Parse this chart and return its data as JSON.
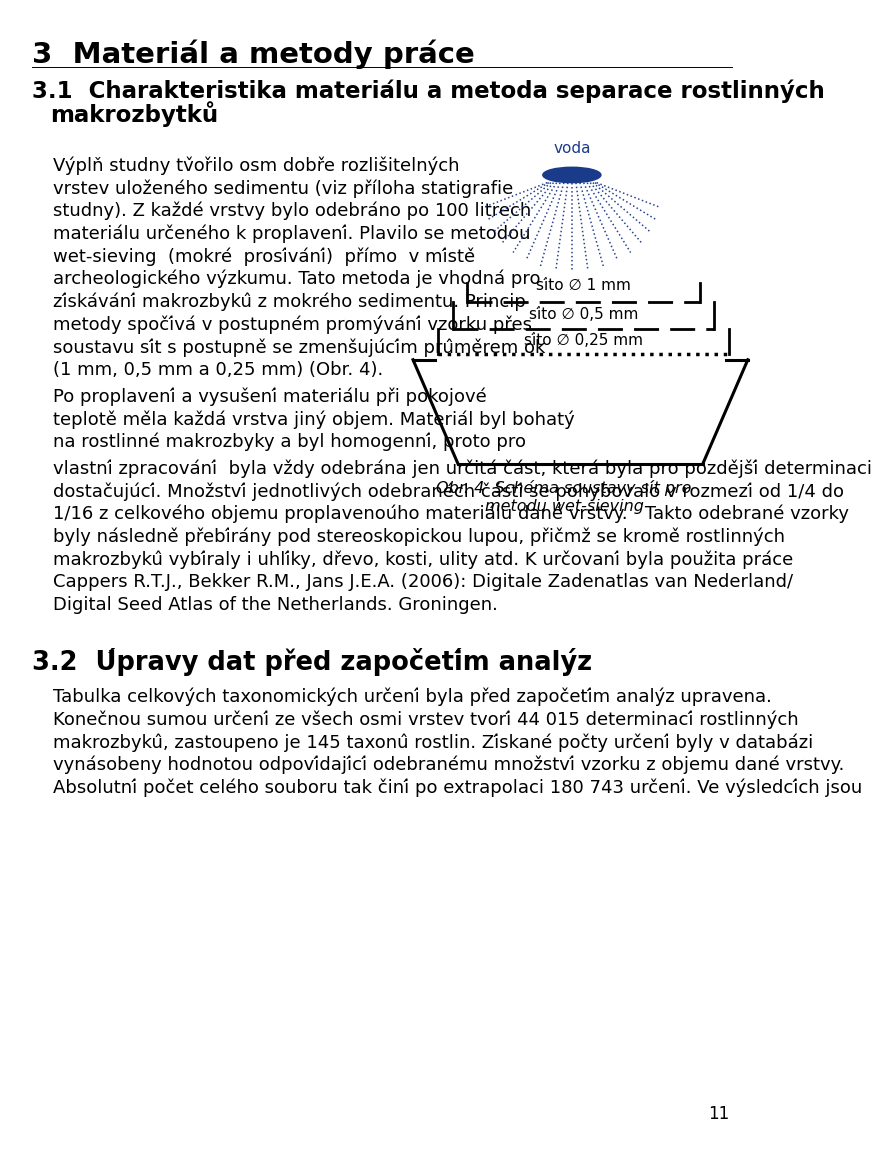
{
  "page_title": "3  Materiál a metody práce",
  "sec1_line1": "3.1  Charakteristika materiálu a metoda separace rostlinných",
  "sec1_line2": "     makrozbykû",
  "para1_lines": [
    "Výplň studny tv̌ořilo osm dobře rozlišitelných",
    "vrstev uloženého sedimentu (viz příloha statigrafie",
    "studny). Z každé vrstvy bylo odebráno po 100 litrech",
    "materiálu určeného k proplavení. Plavilo se metodou",
    "wet-sieving  (mokré  prosívání)  přímo  v místě",
    "archeologického výzkumu. Tato metoda je vhodná pro",
    "získávání makrozbykû z mokrého sedimentu. Princip",
    "metody spočívá v postupném promývání vzorku přes",
    "soustavu sít s postupně se zmenšujúcím prûměrem ok",
    "(1 mm, 0,5 mm a 0,25 mm) (Obr. 4)."
  ],
  "para2a_lines": [
    "Po proplavení a vysušení materiálu při pokojové",
    "teplotě měla každá vrstva jiný objem. Materiál byl bohatý",
    "na rostlinné makrozbyky a byl homogenní, proto pro"
  ],
  "para2b_lines": [
    "vlastní zpracování  byla vždy odebrána jen určitá část, která byla pro pozdější determinaci",
    "dostačujúcí. Množství jednotlivých odebranéch částí se pohybovalo v rozmezí od 1/4 do",
    "1/16 z celkového objemu proplavenoúho materiálu dané vrstvy.   Takto odebrané vzorky",
    "byly následně přebírány pod stereoskopickou lupou, přičmž se kromě rostlinných",
    "makrozbykû vybíraly i uhlíky, dřevo, kosti, ulity atd. K určovaní byla použita práce",
    "Cappers R.T.J., Bekker R.M., Jans J.E.A. (2006): Digitale Zadenatlas van Nederland/",
    "Digital Seed Atlas of the Netherlands. Groningen."
  ],
  "sec2_title": "3.2  Úpravy dat před započetím analýz",
  "para3_lines": [
    "Tabulka celkových taxonomických určení byla před započetím analýz upravena.",
    "Konečnou sumou určení ze všech osmi vrstev tvorí 44 015 determinací rostlinných",
    "makrozbykû, zastoupeno je 145 taxonû rostlin. Získané počty určení byly v databázi",
    "vynásobeny hodnotou odpovídající odebranému množství vzorku z objemu dané vrstvy.",
    "Absolutní počet celého souboru tak činí po extrapolaci 180 743 určení. Ve výsledcích jsou"
  ],
  "caption_line1": "Obr. 4  Schéma soustavy sít pro",
  "caption_line2": "metodu wet-sieving",
  "water_label": "voda",
  "sieve1_label": "síto ∅ 1 mm",
  "sieve2_label": "síto ∅ 0,5 mm",
  "sieve3_label": "síto ∅ 0,25 mm",
  "page_number": "11",
  "bg_color": "#ffffff",
  "blue_color": "#1a3a8a"
}
